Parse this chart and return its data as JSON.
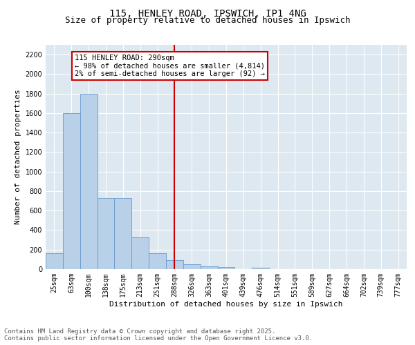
{
  "title": "115, HENLEY ROAD, IPSWICH, IP1 4NG",
  "subtitle": "Size of property relative to detached houses in Ipswich",
  "xlabel": "Distribution of detached houses by size in Ipswich",
  "ylabel": "Number of detached properties",
  "bin_labels": [
    "25sqm",
    "63sqm",
    "100sqm",
    "138sqm",
    "175sqm",
    "213sqm",
    "251sqm",
    "288sqm",
    "326sqm",
    "363sqm",
    "401sqm",
    "439sqm",
    "476sqm",
    "514sqm",
    "551sqm",
    "589sqm",
    "627sqm",
    "664sqm",
    "702sqm",
    "739sqm",
    "777sqm"
  ],
  "bar_heights": [
    165,
    1600,
    1800,
    730,
    730,
    325,
    160,
    90,
    47,
    30,
    20,
    0,
    15,
    0,
    0,
    0,
    0,
    0,
    0,
    0,
    0
  ],
  "bar_color": "#b8d0e8",
  "bar_edge_color": "#6699cc",
  "vline_x_idx": 7,
  "vline_color": "#cc0000",
  "annotation_text": "115 HENLEY ROAD: 290sqm\n← 98% of detached houses are smaller (4,814)\n2% of semi-detached houses are larger (92) →",
  "annotation_box_color": "#cc0000",
  "ylim": [
    0,
    2300
  ],
  "yticks": [
    0,
    200,
    400,
    600,
    800,
    1000,
    1200,
    1400,
    1600,
    1800,
    2000,
    2200
  ],
  "bg_color": "#dde8f0",
  "footer_line1": "Contains HM Land Registry data © Crown copyright and database right 2025.",
  "footer_line2": "Contains public sector information licensed under the Open Government Licence v3.0.",
  "title_fontsize": 10,
  "subtitle_fontsize": 9,
  "axis_label_fontsize": 8,
  "tick_fontsize": 7,
  "annotation_fontsize": 7.5,
  "footer_fontsize": 6.5
}
